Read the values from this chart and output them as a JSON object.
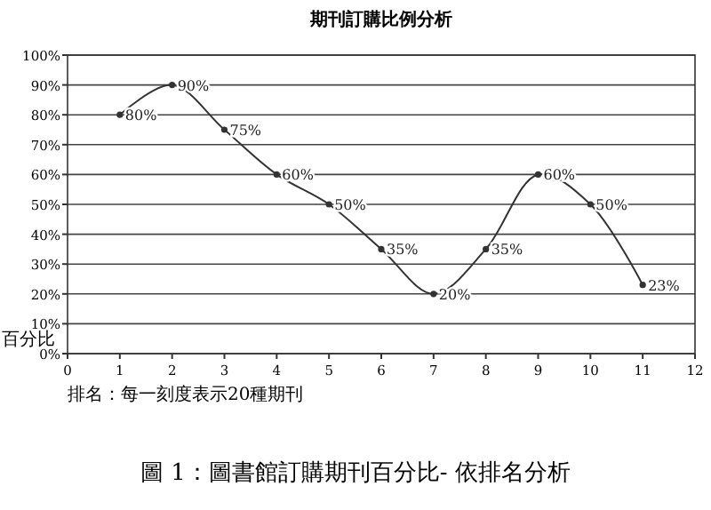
{
  "chart_data": {
    "type": "line",
    "title": "期刊訂購比例分析",
    "xlabel": "排名：每一刻度表示20種期刊",
    "ylabel": "百分比",
    "annotations": [
      "圖 1：圖書館訂購期刊百分比- 依排名分析"
    ],
    "x": [
      1,
      2,
      3,
      4,
      5,
      6,
      7,
      8,
      9,
      10,
      11
    ],
    "series": [
      {
        "color": "#333333",
        "values": [
          80,
          90,
          75,
          60,
          50,
          35,
          20,
          35,
          60,
          50,
          23
        ],
        "value_labels": [
          "80%",
          "90%",
          "75%",
          "60%",
          "50%",
          "35%",
          "20%",
          "35%",
          "60%",
          "50%",
          "23%"
        ]
      }
    ],
    "xlim": [
      0,
      12
    ],
    "xticks": [
      0,
      1,
      2,
      3,
      4,
      5,
      6,
      7,
      8,
      9,
      10,
      11,
      12
    ],
    "ylim": [
      0,
      100
    ],
    "yticks": [
      {
        "value": 0,
        "label": "0%"
      },
      {
        "value": 10,
        "label": "10%"
      },
      {
        "value": 20,
        "label": "20%"
      },
      {
        "value": 30,
        "label": "30%"
      },
      {
        "value": 40,
        "label": "40%"
      },
      {
        "value": 50,
        "label": "50%"
      },
      {
        "value": 60,
        "label": "60%"
      },
      {
        "value": 70,
        "label": "70%"
      },
      {
        "value": 80,
        "label": "80%"
      },
      {
        "value": 90,
        "label": "90%"
      },
      {
        "value": 100,
        "label": "100%"
      }
    ],
    "grid": "y",
    "marker": "circle",
    "line_style": "solid"
  }
}
